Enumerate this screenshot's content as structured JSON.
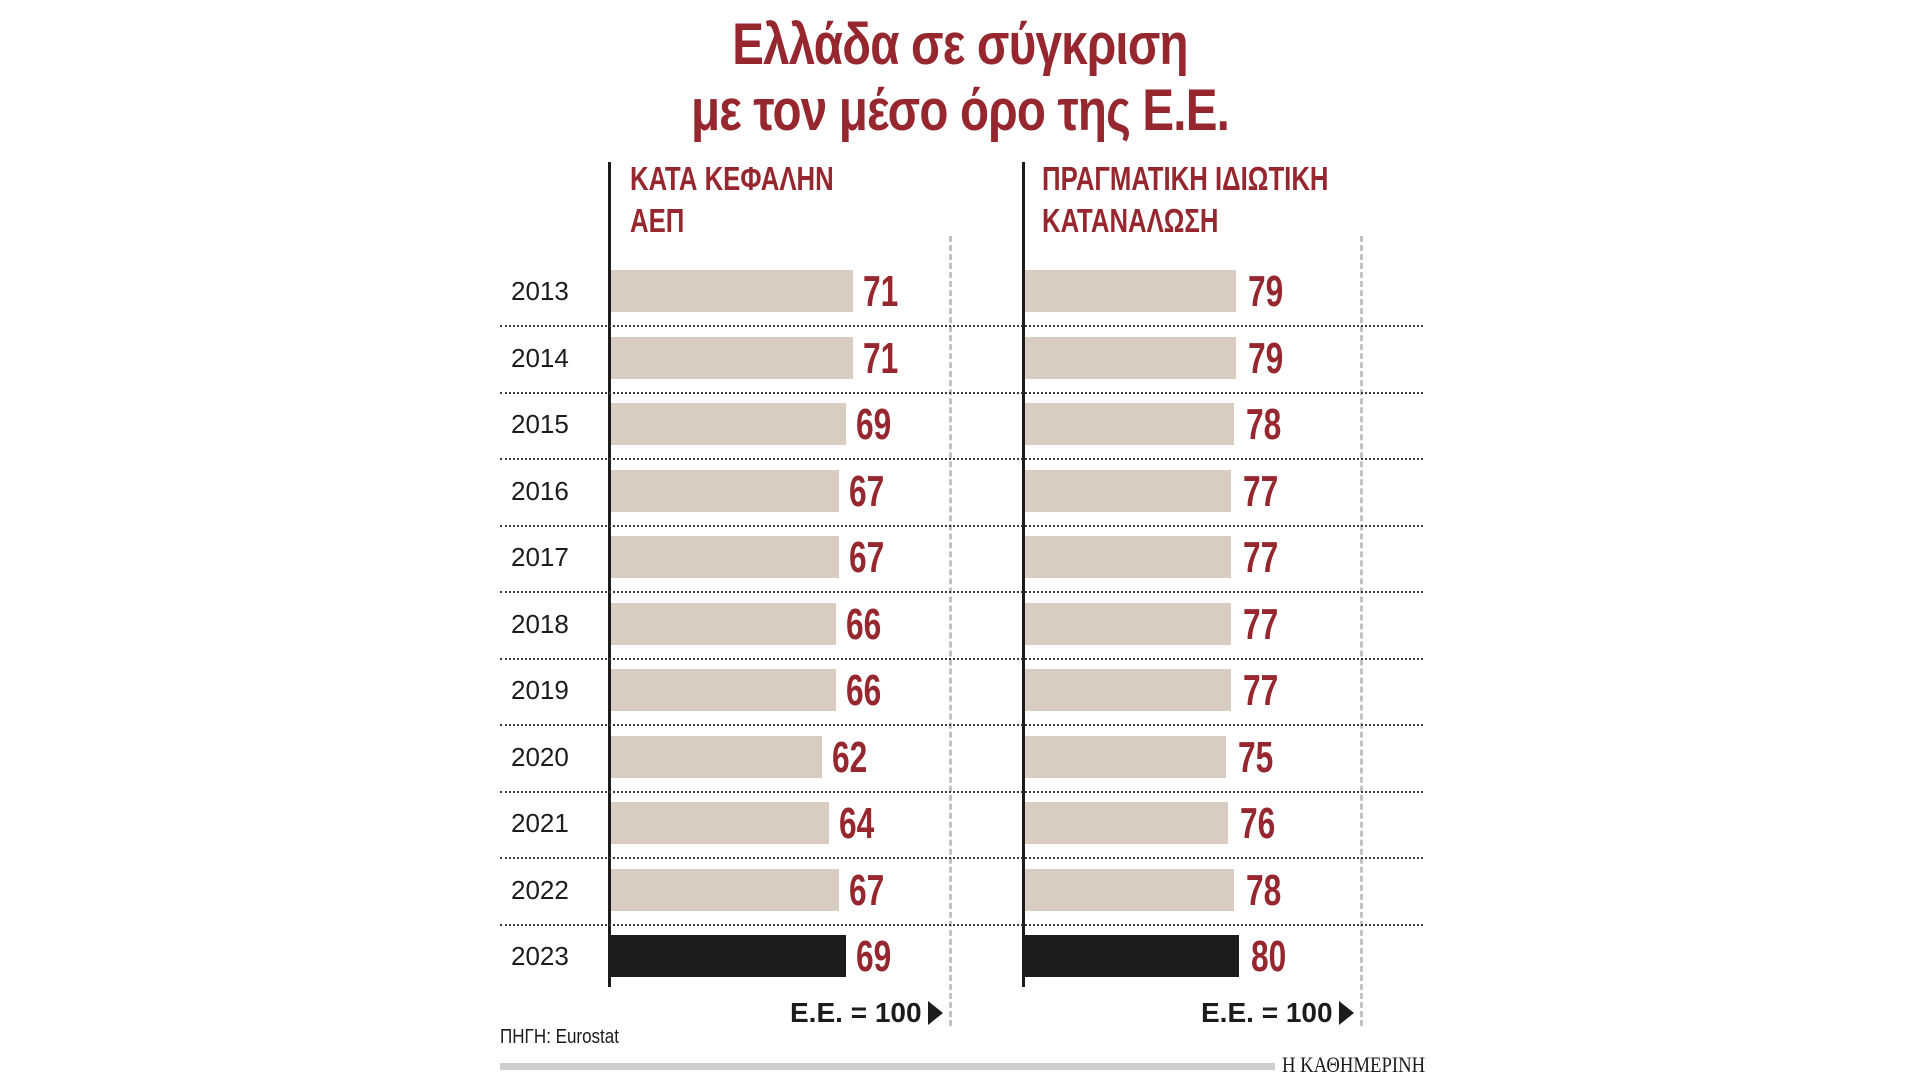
{
  "title": {
    "line1": "Ελλάδα σε σύγκριση",
    "line2": "με τον μέσο όρο της Ε.Ε."
  },
  "panels": [
    {
      "heading_line1": "ΚΑΤΑ ΚΕΦΑΛΗΝ",
      "heading_line2": "ΑΕΠ",
      "reference_label": "Ε.Ε. = 100"
    },
    {
      "heading_line1": "ΠΡΑΓΜΑΤΙΚΗ ΙΔΙΩΤΙΚΗ",
      "heading_line2": "ΚΑΤΑΝΑΛΩΣΗ",
      "reference_label": "Ε.Ε. = 100"
    }
  ],
  "years": [
    "2013",
    "2014",
    "2015",
    "2016",
    "2017",
    "2018",
    "2019",
    "2020",
    "2021",
    "2022",
    "2023"
  ],
  "values_gdp": [
    "71",
    "71",
    "69",
    "67",
    "67",
    "66",
    "66",
    "62",
    "64",
    "67",
    "69"
  ],
  "values_consumption": [
    "79",
    "79",
    "78",
    "77",
    "77",
    "77",
    "77",
    "75",
    "76",
    "78",
    "80"
  ],
  "footer": {
    "source": "ΠΗΓΗ: Eurostat",
    "brand": "Η ΚΑΘΗΜΕΡΙΝΗ"
  },
  "colors": {
    "accent": "#97272f",
    "bar": "#d9cdc1",
    "highlight_bar": "#1c1c1c",
    "reference_line": "#c2c2c2"
  },
  "chart_data": [
    {
      "type": "bar",
      "orientation": "horizontal",
      "title": "ΚΑΤΑ ΚΕΦΑΛΗΝ ΑΕΠ",
      "categories": [
        "2013",
        "2014",
        "2015",
        "2016",
        "2017",
        "2018",
        "2019",
        "2020",
        "2021",
        "2022",
        "2023"
      ],
      "values": [
        71,
        71,
        69,
        67,
        67,
        66,
        66,
        62,
        64,
        67,
        69
      ],
      "reference_line": {
        "value": 100,
        "label": "Ε.Ε. = 100"
      },
      "highlight": "2023",
      "xlim": [
        0,
        100
      ],
      "grid": false,
      "data_labels": true
    },
    {
      "type": "bar",
      "orientation": "horizontal",
      "title": "ΠΡΑΓΜΑΤΙΚΗ ΙΔΙΩΤΙΚΗ ΚΑΤΑΝΑΛΩΣΗ",
      "categories": [
        "2013",
        "2014",
        "2015",
        "2016",
        "2017",
        "2018",
        "2019",
        "2020",
        "2021",
        "2022",
        "2023"
      ],
      "values": [
        79,
        79,
        78,
        77,
        77,
        77,
        77,
        75,
        76,
        78,
        80
      ],
      "reference_line": {
        "value": 100,
        "label": "Ε.Ε. = 100"
      },
      "highlight": "2023",
      "xlim": [
        0,
        100
      ],
      "grid": false,
      "data_labels": true
    }
  ]
}
